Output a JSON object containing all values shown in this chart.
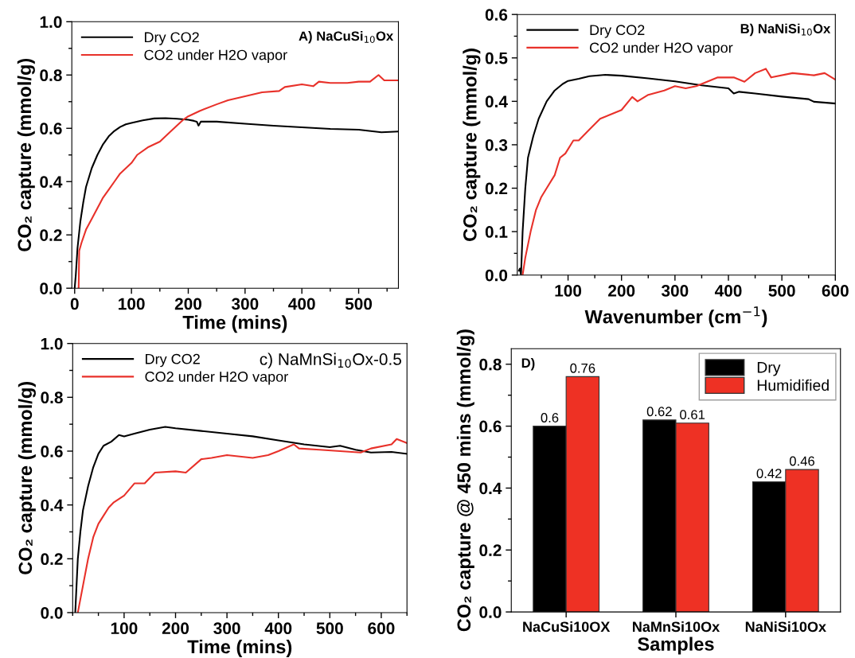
{
  "chart_data": [
    {
      "type": "line",
      "xlabel": "Time (mins)",
      "ylabel": "CO₂ capture (mmol/g)",
      "annotations": [
        "A) NaCuSi$_{10}$Ox"
      ],
      "xlim": [
        -5,
        570
      ],
      "xticks": [
        0,
        100,
        200,
        300,
        400,
        500
      ],
      "ylim": [
        0,
        1
      ],
      "yticks": [
        {
          "value": 0,
          "label": "0.0"
        },
        {
          "value": 0.2,
          "label": "0.2"
        },
        {
          "value": 0.4,
          "label": "0.4"
        },
        {
          "value": 0.6,
          "label": "0.6"
        },
        {
          "value": 0.8,
          "label": "0.8"
        },
        {
          "value": 1,
          "label": "1.0"
        }
      ],
      "legend": "top left",
      "grid": false,
      "series": [
        {
          "name": "Dry CO2",
          "color": "#000000",
          "x": [
            0,
            2,
            5,
            10,
            15,
            20,
            30,
            40,
            50,
            60,
            70,
            80,
            90,
            100,
            120,
            140,
            160,
            180,
            200,
            210,
            215,
            218,
            222,
            250,
            300,
            350,
            400,
            450,
            500,
            540,
            570
          ],
          "values": [
            0,
            0.05,
            0.15,
            0.25,
            0.32,
            0.38,
            0.45,
            0.5,
            0.54,
            0.57,
            0.59,
            0.605,
            0.615,
            0.62,
            0.63,
            0.637,
            0.638,
            0.636,
            0.632,
            0.628,
            0.625,
            0.61,
            0.625,
            0.625,
            0.617,
            0.61,
            0.604,
            0.598,
            0.595,
            0.585,
            0.588
          ]
        },
        {
          "name": "CO2 under H2O vapor",
          "color": "#e8312a",
          "x": [
            7,
            8,
            12,
            20,
            30,
            40,
            50,
            60,
            70,
            80,
            90,
            100,
            110,
            130,
            150,
            170,
            190,
            200,
            220,
            250,
            270,
            300,
            330,
            360,
            370,
            400,
            420,
            430,
            450,
            480,
            500,
            520,
            535,
            545,
            570
          ],
          "values": [
            0,
            0.14,
            0.17,
            0.22,
            0.26,
            0.3,
            0.34,
            0.37,
            0.4,
            0.43,
            0.45,
            0.47,
            0.5,
            0.53,
            0.55,
            0.59,
            0.63,
            0.645,
            0.665,
            0.69,
            0.705,
            0.72,
            0.735,
            0.74,
            0.755,
            0.765,
            0.758,
            0.775,
            0.77,
            0.77,
            0.775,
            0.775,
            0.8,
            0.78,
            0.78
          ]
        }
      ]
    },
    {
      "type": "line",
      "xlabel": "Wavenumber (cm$^{−1}$)",
      "ylabel": "CO₂ capture (mmol/g)",
      "annotations": [
        "B) NaNiSi$_{10}$Ox"
      ],
      "xlim": [
        5,
        600
      ],
      "xticks": [
        100,
        200,
        300,
        400,
        500,
        600
      ],
      "ylim": [
        0,
        0.6
      ],
      "yticks": [
        {
          "value": 0,
          "label": "0.0"
        },
        0.1,
        0.2,
        0.3,
        0.4,
        0.5,
        0.6
      ],
      "legend": "top left",
      "grid": false,
      "series": [
        {
          "name": "Dry CO2",
          "color": "#000000",
          "x": [
            8,
            10,
            12,
            15,
            20,
            25,
            35,
            45,
            60,
            75,
            90,
            100,
            120,
            140,
            170,
            200,
            250,
            300,
            350,
            400,
            410,
            420,
            450,
            500,
            550,
            560,
            600
          ],
          "values": [
            0.01,
            0.015,
            0,
            0.1,
            0.2,
            0.27,
            0.32,
            0.36,
            0.4,
            0.425,
            0.44,
            0.447,
            0.452,
            0.458,
            0.461,
            0.459,
            0.453,
            0.446,
            0.437,
            0.43,
            0.418,
            0.422,
            0.418,
            0.411,
            0.405,
            0.399,
            0.395
          ]
        },
        {
          "name": "CO2 under H2O vapor",
          "color": "#e8312a",
          "x": [
            15,
            20,
            30,
            40,
            50,
            60,
            75,
            85,
            95,
            110,
            120,
            140,
            160,
            180,
            200,
            220,
            230,
            250,
            280,
            300,
            320,
            340,
            360,
            380,
            410,
            430,
            450,
            470,
            480,
            520,
            560,
            580,
            600
          ],
          "values": [
            0,
            0.04,
            0.1,
            0.15,
            0.18,
            0.2,
            0.23,
            0.27,
            0.28,
            0.31,
            0.31,
            0.335,
            0.36,
            0.37,
            0.38,
            0.41,
            0.4,
            0.415,
            0.425,
            0.435,
            0.43,
            0.435,
            0.445,
            0.455,
            0.455,
            0.445,
            0.465,
            0.475,
            0.455,
            0.465,
            0.46,
            0.465,
            0.45
          ]
        }
      ]
    },
    {
      "type": "line",
      "xlabel": "Time (mins)",
      "ylabel": "CO₂ capture (mmol/g)",
      "annotations": [
        "c) NaMnSi$_{10}$Ox-0.5"
      ],
      "xlim": [
        0,
        650
      ],
      "xticks": [
        100,
        200,
        300,
        400,
        500,
        600
      ],
      "ylim": [
        0,
        1
      ],
      "yticks": [
        {
          "value": 0,
          "label": "0.0"
        },
        {
          "value": 0.2,
          "label": "0.2"
        },
        {
          "value": 0.4,
          "label": "0.4"
        },
        {
          "value": 0.6,
          "label": "0.6"
        },
        {
          "value": 0.8,
          "label": "0.8"
        },
        {
          "value": 1,
          "label": "1.0"
        }
      ],
      "legend": "top left",
      "grid": false,
      "series": [
        {
          "name": "Dry CO2",
          "color": "#000000",
          "x": [
            5,
            10,
            15,
            20,
            30,
            40,
            50,
            60,
            75,
            90,
            100,
            120,
            150,
            180,
            200,
            250,
            300,
            350,
            400,
            450,
            500,
            520,
            550,
            580,
            620,
            650
          ],
          "values": [
            0,
            0.2,
            0.3,
            0.38,
            0.47,
            0.54,
            0.59,
            0.62,
            0.635,
            0.66,
            0.655,
            0.665,
            0.68,
            0.69,
            0.685,
            0.675,
            0.665,
            0.655,
            0.64,
            0.625,
            0.615,
            0.62,
            0.605,
            0.595,
            0.597,
            0.59
          ]
        },
        {
          "name": "CO2 under H2O vapor",
          "color": "#e8312a",
          "x": [
            10,
            20,
            30,
            40,
            50,
            60,
            70,
            80,
            100,
            120,
            140,
            160,
            200,
            220,
            250,
            270,
            300,
            350,
            380,
            400,
            430,
            440,
            480,
            520,
            560,
            580,
            620,
            630,
            650
          ],
          "values": [
            0,
            0.1,
            0.2,
            0.28,
            0.33,
            0.36,
            0.39,
            0.41,
            0.435,
            0.48,
            0.48,
            0.52,
            0.525,
            0.52,
            0.57,
            0.575,
            0.585,
            0.575,
            0.585,
            0.6,
            0.625,
            0.61,
            0.605,
            0.6,
            0.595,
            0.61,
            0.625,
            0.645,
            0.63
          ]
        }
      ]
    },
    {
      "type": "bar",
      "xlabel": "Samples",
      "ylabel": "CO₂ capture @ 450 mins (mmol/g)",
      "annotations": [
        "D)"
      ],
      "categories": [
        "NaCuSi10OX",
        "NaMnSi10Ox",
        "NaNiSi10Ox"
      ],
      "ylim": [
        0,
        0.85
      ],
      "yticks": [
        {
          "value": 0,
          "label": "0.0"
        },
        0.2,
        0.4,
        0.6,
        0.8
      ],
      "legend": "top right",
      "grid": false,
      "data_labels": true,
      "series": [
        {
          "name": "Dry",
          "color": "#000000",
          "values": [
            0.6,
            0.62,
            0.42
          ]
        },
        {
          "name": "Humidified",
          "color": "#ee3124",
          "values": [
            0.76,
            0.61,
            0.46
          ]
        }
      ]
    }
  ]
}
